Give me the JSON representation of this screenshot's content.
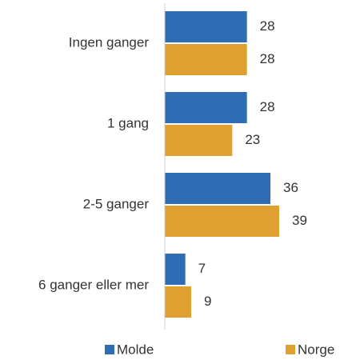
{
  "chart_data": {
    "type": "barh",
    "categories": [
      "Ingen ganger",
      "1 gang",
      "2-5 ganger",
      "6 ganger eller mer"
    ],
    "series": [
      {
        "name": "Molde",
        "color": "#2e6db4",
        "values": [
          28,
          28,
          36,
          7
        ]
      },
      {
        "name": "Norge",
        "color": "#e0a030",
        "values": [
          28,
          23,
          39,
          9
        ]
      }
    ],
    "xlim": [
      0,
      60
    ],
    "legend": "bottom"
  }
}
